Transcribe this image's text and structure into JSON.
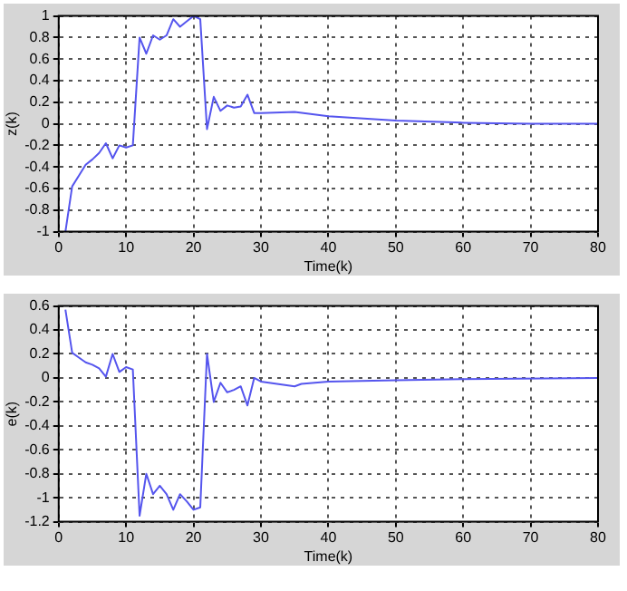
{
  "chart_data": [
    {
      "type": "line",
      "xlabel": "Time(k)",
      "ylabel": "z(k)",
      "x": [
        1,
        2,
        3,
        4,
        5,
        6,
        7,
        8,
        9,
        10,
        11,
        12,
        13,
        14,
        15,
        16,
        17,
        18,
        19,
        20,
        21,
        22,
        23,
        24,
        25,
        26,
        27,
        28,
        29,
        30,
        35,
        40,
        50,
        60,
        70,
        80
      ],
      "series": [
        {
          "color": "#5555ee",
          "values": [
            -1,
            -0.58,
            -0.48,
            -0.38,
            -0.33,
            -0.27,
            -0.18,
            -0.32,
            -0.2,
            -0.22,
            -0.2,
            0.8,
            0.65,
            0.82,
            0.78,
            0.82,
            0.97,
            0.9,
            0.95,
            1,
            0.97,
            -0.05,
            0.25,
            0.12,
            0.17,
            0.15,
            0.16,
            0.27,
            0.1,
            0.1,
            0.11,
            0.07,
            0.03,
            0.01,
            0,
            0
          ]
        }
      ],
      "xlim": [
        0,
        80
      ],
      "xticks": [
        0,
        10,
        20,
        30,
        40,
        50,
        60,
        70,
        80
      ],
      "ylim": [
        -1,
        1
      ],
      "yticks": [
        -1,
        -0.8,
        -0.6,
        -0.4,
        -0.2,
        0,
        0.2,
        0.4,
        0.6,
        0.8,
        1
      ],
      "grid": true,
      "legend": false,
      "marker": "none",
      "line_style": "solid"
    },
    {
      "type": "line",
      "xlabel": "Time(k)",
      "ylabel": "e(k)",
      "x": [
        1,
        2,
        3,
        4,
        5,
        6,
        7,
        8,
        9,
        10,
        11,
        12,
        13,
        14,
        15,
        16,
        17,
        18,
        19,
        20,
        21,
        22,
        23,
        24,
        25,
        26,
        27,
        28,
        29,
        30,
        35,
        36,
        40,
        50,
        60,
        80
      ],
      "series": [
        {
          "color": "#5555ee",
          "values": [
            0.57,
            0.21,
            0.17,
            0.13,
            0.11,
            0.08,
            0.01,
            0.2,
            0.05,
            0.09,
            0.07,
            -1.15,
            -0.8,
            -0.97,
            -0.9,
            -0.97,
            -1.1,
            -0.97,
            -1.03,
            -1.1,
            -1.08,
            0.2,
            -0.2,
            -0.04,
            -0.12,
            -0.1,
            -0.07,
            -0.23,
            0,
            -0.03,
            -0.07,
            -0.05,
            -0.03,
            -0.02,
            -0.01,
            0
          ]
        }
      ],
      "xlim": [
        0,
        80
      ],
      "xticks": [
        0,
        10,
        20,
        30,
        40,
        50,
        60,
        70,
        80
      ],
      "ylim": [
        -1.2,
        0.6
      ],
      "yticks": [
        -1.2,
        -1,
        -0.8,
        -0.6,
        -0.4,
        -0.2,
        0,
        0.2,
        0.4,
        0.6
      ],
      "grid": true,
      "legend": false,
      "marker": "none",
      "line_style": "solid"
    }
  ]
}
